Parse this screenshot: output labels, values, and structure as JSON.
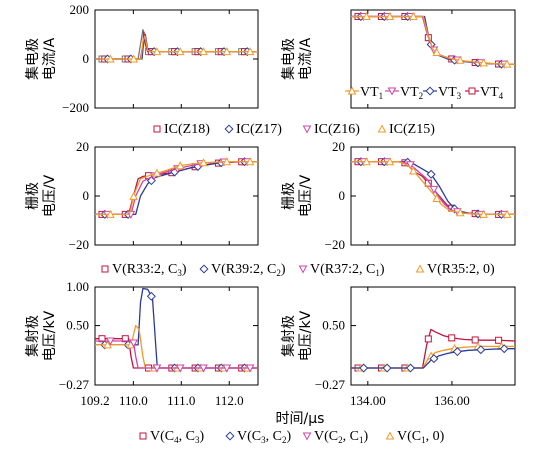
{
  "colors": {
    "red": "#c0143c",
    "blue": "#2a3c9a",
    "magenta": "#cc44aa",
    "orange": "#f09a28",
    "gray": "#777777"
  },
  "xlabel": "时间/μs",
  "chart_data": [
    {
      "type": "line",
      "ylabel": [
        "集电极",
        "电流/A"
      ],
      "xlim": [
        109.2,
        112.6
      ],
      "ylim": [
        -200,
        200
      ],
      "y_ticks": [
        "200",
        "0",
        "−200"
      ],
      "y_tick_values": [
        200,
        0,
        -200
      ],
      "series": [
        {
          "color": "gray",
          "marker": "square",
          "x": [
            109.2,
            110.1,
            110.15,
            110.2,
            110.25,
            110.3,
            110.4,
            110.6,
            111.0,
            111.5,
            112.0,
            112.6
          ],
          "y": [
            0,
            0,
            60,
            120,
            80,
            30,
            30,
            30,
            30,
            30,
            30,
            30
          ]
        },
        {
          "color": "red",
          "marker": "square",
          "x": [
            109.2,
            110.15,
            110.2,
            110.22,
            110.25,
            110.3,
            110.4,
            110.6,
            111.0,
            111.5,
            112.0,
            112.6
          ],
          "y": [
            0,
            0,
            60,
            110,
            60,
            30,
            30,
            30,
            30,
            30,
            30,
            30
          ]
        },
        {
          "color": "blue",
          "marker": "diamond",
          "x": [
            109.2,
            110.18,
            110.22,
            110.25,
            110.3,
            110.4,
            110.6,
            111.0,
            111.5,
            112.0,
            112.6
          ],
          "y": [
            0,
            0,
            80,
            100,
            40,
            30,
            30,
            30,
            30,
            30,
            30
          ]
        },
        {
          "color": "orange",
          "marker": "triangle",
          "x": [
            109.2,
            110.16,
            110.2,
            110.24,
            110.3,
            110.4,
            110.6,
            111.0,
            111.5,
            112.0,
            112.6
          ],
          "y": [
            0,
            0,
            70,
            95,
            35,
            30,
            30,
            30,
            30,
            30,
            30
          ]
        }
      ]
    },
    {
      "type": "line",
      "ylabel": [
        "集电极",
        "电流/A"
      ],
      "xlim": [
        133.6,
        137.5
      ],
      "ylim": [
        -40,
        50
      ],
      "y_ticks": [],
      "y_tick_values": [],
      "series": [
        {
          "color": "red",
          "marker": "square",
          "x": [
            133.6,
            135.3,
            135.4,
            135.5,
            135.6,
            135.8,
            136.0,
            136.3,
            136.6,
            137.0,
            137.5
          ],
          "y": [
            44,
            44,
            30,
            16,
            11,
            7,
            5,
            3,
            1.5,
            0.5,
            0
          ]
        },
        {
          "color": "blue",
          "marker": "diamond",
          "x": [
            133.6,
            135.35,
            135.45,
            135.55,
            135.7,
            135.9,
            136.2,
            136.6,
            137.0,
            137.5
          ],
          "y": [
            44,
            44,
            25,
            13,
            8,
            5,
            3,
            1.5,
            0.5,
            0
          ]
        },
        {
          "color": "magenta",
          "marker": "invtriangle",
          "x": [
            133.6,
            135.3,
            135.42,
            135.55,
            135.7,
            135.9,
            136.2,
            136.6,
            137.0,
            137.5
          ],
          "y": [
            44,
            44,
            27,
            14,
            9,
            6,
            3.5,
            1.8,
            0.6,
            0
          ]
        },
        {
          "color": "orange",
          "marker": "triangle",
          "x": [
            133.6,
            135.32,
            135.44,
            135.56,
            135.72,
            135.95,
            136.3,
            136.7,
            137.1,
            137.5
          ],
          "y": [
            44,
            44,
            26,
            13.5,
            8.5,
            5.5,
            3.2,
            1.6,
            0.5,
            0
          ]
        }
      ]
    },
    {
      "type": "line",
      "ylabel": [
        "栅极",
        "电压/V"
      ],
      "xlim": [
        109.2,
        112.6
      ],
      "ylim": [
        -20,
        20
      ],
      "y_ticks": [
        "20",
        "0",
        "−20"
      ],
      "y_tick_values": [
        20,
        0,
        -20
      ],
      "series": [
        {
          "color": "red",
          "marker": "square",
          "x": [
            109.2,
            109.9,
            110.0,
            110.1,
            110.2,
            110.4,
            110.8,
            111.3,
            111.8,
            112.3,
            112.6
          ],
          "y": [
            -7.5,
            -7.5,
            0,
            7,
            8,
            8.5,
            9.5,
            12,
            13.5,
            14,
            14
          ]
        },
        {
          "color": "blue",
          "marker": "diamond",
          "x": [
            109.2,
            110.05,
            110.15,
            110.3,
            110.45,
            110.8,
            111.2,
            111.6,
            112.0,
            112.6
          ],
          "y": [
            -7.5,
            -7.5,
            0,
            5,
            7.5,
            9.5,
            11.5,
            13,
            14,
            14
          ]
        },
        {
          "color": "magenta",
          "marker": "invtriangle",
          "x": [
            109.2,
            109.95,
            110.05,
            110.2,
            110.4,
            110.7,
            111.1,
            111.5,
            112.0,
            112.6
          ],
          "y": [
            -7.5,
            -7.5,
            0,
            6,
            8,
            10,
            12,
            13.5,
            14,
            14
          ]
        },
        {
          "color": "orange",
          "marker": "triangle",
          "x": [
            109.2,
            109.92,
            110.02,
            110.15,
            110.35,
            110.7,
            111.0,
            111.4,
            111.9,
            112.6
          ],
          "y": [
            -7.5,
            -7.5,
            1,
            7,
            8.5,
            10.5,
            12.5,
            13.5,
            14,
            14
          ]
        }
      ]
    },
    {
      "type": "line",
      "ylabel": [
        "栅极",
        "电压/V"
      ],
      "xlim": [
        133.6,
        137.5
      ],
      "ylim": [
        -20,
        20
      ],
      "y_ticks": [
        "20",
        "0",
        "−20"
      ],
      "y_tick_values": [
        20,
        0,
        -20
      ],
      "series": [
        {
          "color": "red",
          "marker": "square",
          "x": [
            133.6,
            134.7,
            134.9,
            135.1,
            135.3,
            135.5,
            135.7,
            135.9,
            136.1,
            136.4,
            136.8,
            137.5
          ],
          "y": [
            14,
            14,
            13.5,
            10,
            8,
            4,
            0,
            -4,
            -6,
            -7,
            -7.5,
            -7.5
          ]
        },
        {
          "color": "blue",
          "marker": "diamond",
          "x": [
            133.6,
            134.9,
            135.1,
            135.3,
            135.5,
            135.7,
            135.9,
            136.1,
            136.4,
            136.8,
            137.5
          ],
          "y": [
            14,
            14,
            13,
            11,
            9,
            4,
            -2,
            -6,
            -7,
            -7.5,
            -7.5
          ]
        },
        {
          "color": "magenta",
          "marker": "invtriangle",
          "x": [
            133.6,
            134.8,
            135.0,
            135.2,
            135.4,
            135.6,
            135.8,
            136.0,
            136.3,
            136.7,
            137.5
          ],
          "y": [
            14,
            14,
            13,
            10,
            7,
            2,
            -3,
            -6,
            -7,
            -7.5,
            -7.5
          ]
        },
        {
          "color": "orange",
          "marker": "triangle",
          "x": [
            133.6,
            134.75,
            134.95,
            135.15,
            135.35,
            135.55,
            135.75,
            135.95,
            136.25,
            136.7,
            137.5
          ],
          "y": [
            14,
            14,
            12.5,
            9,
            5,
            1,
            -3.5,
            -6,
            -7,
            -7.5,
            -7.5
          ]
        }
      ]
    },
    {
      "type": "line",
      "ylabel": [
        "集射极",
        "电压/kV"
      ],
      "xlim": [
        109.2,
        112.6
      ],
      "ylim": [
        -0.27,
        1.0
      ],
      "y_ticks": [
        "1.00",
        "0.50",
        "−0.27"
      ],
      "y_tick_values": [
        1.0,
        0.5,
        -0.27
      ],
      "series": [
        {
          "color": "red",
          "marker": "square",
          "x": [
            109.2,
            109.9,
            109.95,
            110.0,
            110.1,
            110.3,
            110.7,
            111.2,
            111.8,
            112.6
          ],
          "y": [
            0.33,
            0.33,
            0.1,
            -0.05,
            -0.05,
            -0.05,
            -0.05,
            -0.05,
            -0.05,
            -0.05
          ]
        },
        {
          "color": "blue",
          "marker": "diamond",
          "x": [
            109.2,
            110.1,
            110.15,
            110.2,
            110.3,
            110.4,
            110.45,
            110.5,
            110.6,
            111.0,
            111.5,
            112.0,
            112.6
          ],
          "y": [
            0.25,
            0.25,
            0.8,
            0.98,
            0.97,
            0.85,
            0.4,
            -0.05,
            -0.05,
            -0.05,
            -0.05,
            -0.05,
            -0.05
          ]
        },
        {
          "color": "orange",
          "marker": "triangle",
          "x": [
            109.2,
            109.95,
            110.05,
            110.12,
            110.2,
            110.25,
            110.3,
            110.6,
            111.0,
            111.5,
            112.0,
            112.6
          ],
          "y": [
            0.25,
            0.25,
            0.5,
            0.45,
            0.1,
            -0.05,
            -0.05,
            -0.05,
            -0.05,
            -0.05,
            -0.05,
            -0.05
          ]
        },
        {
          "color": "magenta",
          "marker": "invtriangle",
          "x": [
            109.2,
            110.0,
            110.05,
            110.1,
            110.2,
            110.6,
            111.0,
            111.5,
            112.0,
            112.6
          ],
          "y": [
            0.3,
            0.3,
            0.1,
            -0.05,
            -0.05,
            -0.05,
            -0.05,
            -0.05,
            -0.05,
            -0.05
          ]
        }
      ]
    },
    {
      "type": "line",
      "ylabel": [
        "集射极",
        "电压/kV"
      ],
      "xlim": [
        133.6,
        137.5
      ],
      "ylim": [
        -0.27,
        1.0
      ],
      "y_ticks": [
        "0.50",
        "−0.27"
      ],
      "y_tick_values": [
        0.5,
        -0.27
      ],
      "series": [
        {
          "color": "red",
          "marker": "square",
          "x": [
            133.6,
            135.3,
            135.4,
            135.5,
            135.6,
            135.8,
            136.0,
            136.3,
            136.7,
            137.1,
            137.5
          ],
          "y": [
            -0.05,
            -0.05,
            0.25,
            0.45,
            0.42,
            0.37,
            0.34,
            0.32,
            0.31,
            0.31,
            0.3
          ]
        },
        {
          "color": "orange",
          "marker": "triangle",
          "x": [
            133.6,
            135.3,
            135.45,
            135.6,
            135.8,
            136.0,
            136.3,
            136.7,
            137.1,
            137.5
          ],
          "y": [
            -0.05,
            -0.05,
            0.08,
            0.15,
            0.18,
            0.2,
            0.22,
            0.23,
            0.23,
            0.23
          ]
        },
        {
          "color": "blue",
          "marker": "diamond",
          "x": [
            133.6,
            135.32,
            135.5,
            135.7,
            135.9,
            136.1,
            136.4,
            136.8,
            137.2,
            137.5
          ],
          "y": [
            -0.05,
            -0.05,
            0.05,
            0.11,
            0.14,
            0.16,
            0.18,
            0.19,
            0.2,
            0.2
          ]
        }
      ]
    }
  ],
  "x_ticks": {
    "left": {
      "labels": [
        "109.2",
        "110.0",
        "111.0",
        "112.0"
      ],
      "values": [
        109.2,
        110.0,
        111.0,
        112.0
      ]
    },
    "right": {
      "labels": [
        "134.00",
        "136.00"
      ],
      "values": [
        134.0,
        136.0
      ]
    }
  },
  "legends": {
    "current": [
      {
        "label": "VT",
        "sub": "1",
        "color": "orange",
        "marker": "triangle"
      },
      {
        "label": "VT",
        "sub": "2",
        "color": "magenta",
        "marker": "invtriangle"
      },
      {
        "label": "VT",
        "sub": "3",
        "color": "blue",
        "marker": "diamond"
      },
      {
        "label": "VT",
        "sub": "4",
        "color": "red",
        "marker": "square"
      }
    ],
    "row1": [
      {
        "label": "IC(Z18)",
        "color": "red",
        "marker": "square"
      },
      {
        "label": "IC(Z17)",
        "color": "blue",
        "marker": "diamond"
      },
      {
        "label": "IC(Z16)",
        "color": "magenta",
        "marker": "invtriangle"
      },
      {
        "label": "IC(Z15)",
        "color": "orange",
        "marker": "triangle"
      }
    ],
    "row2": [
      {
        "pre": "V(R33:2, C",
        "sub": "3",
        "post": ")",
        "color": "red",
        "marker": "square"
      },
      {
        "pre": "V(R39:2, C",
        "sub": "2",
        "post": ")",
        "color": "blue",
        "marker": "diamond"
      },
      {
        "pre": "V(R37:2, C",
        "sub": "1",
        "post": ")",
        "color": "magenta",
        "marker": "invtriangle"
      },
      {
        "pre": "V(R35:2, 0)",
        "sub": "",
        "post": "",
        "color": "orange",
        "marker": "triangle"
      }
    ],
    "row3": [
      {
        "pre": "V(C",
        "sub": "4",
        "mid": ", C",
        "sub2": "3",
        "post": ")",
        "color": "red",
        "marker": "square"
      },
      {
        "pre": "V(C",
        "sub": "3",
        "mid": ", C",
        "sub2": "2",
        "post": ")",
        "color": "blue",
        "marker": "diamond"
      },
      {
        "pre": "V(C",
        "sub": "2",
        "mid": ", C",
        "sub2": "1",
        "post": ")",
        "color": "magenta",
        "marker": "invtriangle"
      },
      {
        "pre": "V(C",
        "sub": "1",
        "mid": ", 0)",
        "sub2": "",
        "post": "",
        "color": "orange",
        "marker": "triangle"
      }
    ]
  }
}
